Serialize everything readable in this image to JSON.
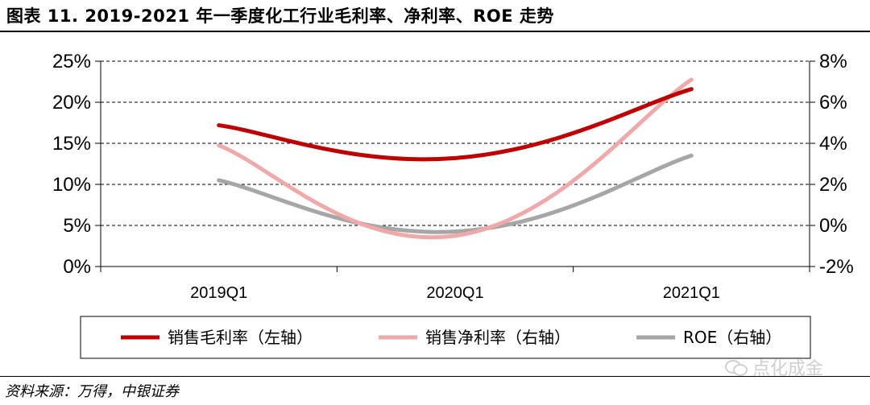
{
  "header": {
    "title": "图表 11. 2019-2021 年一季度化工行业毛利率、净利率、ROE 走势"
  },
  "footer": {
    "source": "资料来源：万得，中银证券",
    "watermark": "点化成金"
  },
  "chart_data": {
    "type": "line",
    "categories": [
      "2019Q1",
      "2020Q1",
      "2021Q1"
    ],
    "left_axis": {
      "min": 0,
      "max": 25,
      "step": 5,
      "unit": "%",
      "ticks": [
        "0%",
        "5%",
        "10%",
        "15%",
        "20%",
        "25%"
      ]
    },
    "right_axis": {
      "min": -2,
      "max": 8,
      "step": 2,
      "unit": "%",
      "ticks": [
        "-2%",
        "0%",
        "2%",
        "4%",
        "6%",
        "8%"
      ]
    },
    "grid": "dashed horizontal",
    "legend_position": "bottom",
    "series": [
      {
        "name": "销售毛利率（左轴）",
        "axis": "left",
        "color": "#c00000",
        "values": [
          17.2,
          13.2,
          21.6
        ]
      },
      {
        "name": "销售净利率（右轴）",
        "axis": "right",
        "color": "#f0a8a8",
        "values": [
          3.9,
          -0.5,
          7.1
        ]
      },
      {
        "name": "ROE（右轴）",
        "axis": "right",
        "color": "#a6a6a6",
        "values": [
          2.2,
          -0.3,
          3.4
        ]
      }
    ]
  }
}
